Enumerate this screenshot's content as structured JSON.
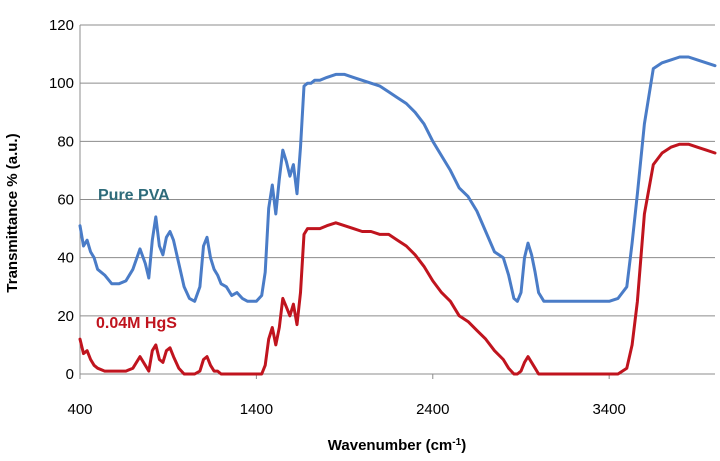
{
  "chart_data": {
    "type": "line",
    "title": "",
    "xlabel": "Wavenumber (cm",
    "xlabel_sup": "-1",
    "xlabel_close": ")",
    "ylabel": "Transmittance % (a.u.)",
    "xlim": [
      400,
      4000
    ],
    "ylim": [
      0,
      120
    ],
    "x_ticks": [
      400,
      1400,
      2400,
      3400
    ],
    "x_tick_labels": [
      "400",
      "1400",
      "2400",
      "3400"
    ],
    "y_ticks": [
      0,
      20,
      40,
      60,
      80,
      100,
      120
    ],
    "y_tick_labels": [
      "0",
      "20",
      "40",
      "60",
      "80",
      "100",
      "120"
    ],
    "grid": "horizontal",
    "legend": "inline labels",
    "series": [
      {
        "name": "Pure PVA",
        "color": "#4a7cc7",
        "label_color": "#2e6b7a",
        "label_position": [
          700,
          62
        ],
        "x": [
          400,
          420,
          440,
          460,
          480,
          500,
          540,
          580,
          620,
          660,
          700,
          740,
          770,
          790,
          810,
          830,
          850,
          870,
          890,
          910,
          930,
          960,
          990,
          1020,
          1050,
          1080,
          1100,
          1120,
          1140,
          1160,
          1180,
          1200,
          1230,
          1260,
          1290,
          1320,
          1350,
          1380,
          1400,
          1430,
          1450,
          1470,
          1490,
          1510,
          1530,
          1550,
          1570,
          1590,
          1610,
          1630,
          1650,
          1670,
          1690,
          1710,
          1730,
          1760,
          1800,
          1850,
          1900,
          1950,
          2000,
          2050,
          2100,
          2150,
          2200,
          2250,
          2300,
          2350,
          2400,
          2450,
          2500,
          2550,
          2600,
          2650,
          2700,
          2750,
          2800,
          2830,
          2860,
          2880,
          2900,
          2920,
          2940,
          2960,
          2980,
          3000,
          3030,
          3060,
          3100,
          3150,
          3200,
          3300,
          3400,
          3450,
          3500,
          3530,
          3560,
          3600,
          3650,
          3700,
          3750,
          3800,
          3850,
          3900,
          3950,
          4000
        ],
        "y": [
          51,
          44,
          46,
          42,
          40,
          36,
          34,
          31,
          31,
          32,
          36,
          43,
          38,
          33,
          46,
          54,
          44,
          41,
          47,
          49,
          46,
          38,
          30,
          26,
          25,
          30,
          44,
          47,
          40,
          36,
          34,
          31,
          30,
          27,
          28,
          26,
          25,
          25,
          25,
          27,
          35,
          57,
          65,
          55,
          67,
          77,
          73,
          68,
          72,
          62,
          78,
          99,
          100,
          100,
          101,
          101,
          102,
          103,
          103,
          102,
          101,
          100,
          99,
          97,
          95,
          93,
          90,
          86,
          80,
          75,
          70,
          64,
          61,
          56,
          49,
          42,
          40,
          34,
          26,
          25,
          28,
          40,
          45,
          41,
          35,
          28,
          25,
          25,
          25,
          25,
          25,
          25,
          25,
          26,
          30,
          45,
          62,
          86,
          105,
          107,
          108,
          109,
          109,
          108,
          107,
          106
        ]
      },
      {
        "name": "0.04M HgS",
        "color": "#c0141e",
        "label_color": "#c0141e",
        "label_position": [
          700,
          321
        ],
        "x": [
          400,
          420,
          440,
          460,
          480,
          500,
          540,
          580,
          620,
          660,
          700,
          740,
          770,
          790,
          810,
          830,
          850,
          870,
          890,
          910,
          930,
          960,
          990,
          1020,
          1050,
          1080,
          1100,
          1120,
          1140,
          1160,
          1180,
          1200,
          1230,
          1260,
          1290,
          1320,
          1350,
          1380,
          1400,
          1430,
          1450,
          1470,
          1490,
          1510,
          1530,
          1550,
          1570,
          1590,
          1610,
          1630,
          1650,
          1670,
          1690,
          1710,
          1730,
          1760,
          1800,
          1850,
          1900,
          1950,
          2000,
          2050,
          2100,
          2150,
          2200,
          2250,
          2300,
          2350,
          2400,
          2450,
          2500,
          2550,
          2600,
          2650,
          2700,
          2750,
          2800,
          2830,
          2860,
          2880,
          2900,
          2920,
          2940,
          2960,
          2980,
          3000,
          3030,
          3060,
          3100,
          3150,
          3200,
          3300,
          3400,
          3450,
          3500,
          3530,
          3560,
          3600,
          3650,
          3700,
          3750,
          3800,
          3850,
          3900,
          3950,
          4000
        ],
        "y": [
          12,
          7,
          8,
          5,
          3,
          2,
          1,
          1,
          1,
          1,
          2,
          6,
          3,
          1,
          8,
          10,
          5,
          4,
          8,
          9,
          6,
          2,
          0,
          0,
          0,
          1,
          5,
          6,
          3,
          1,
          1,
          0,
          0,
          0,
          0,
          0,
          0,
          0,
          0,
          0,
          3,
          12,
          16,
          10,
          16,
          26,
          23,
          20,
          24,
          17,
          28,
          48,
          50,
          50,
          50,
          50,
          51,
          52,
          51,
          50,
          49,
          49,
          48,
          48,
          46,
          44,
          41,
          37,
          32,
          28,
          25,
          20,
          18,
          15,
          12,
          8,
          5,
          2,
          0,
          0,
          1,
          4,
          6,
          4,
          2,
          0,
          0,
          0,
          0,
          0,
          0,
          0,
          0,
          0,
          2,
          10,
          25,
          55,
          72,
          76,
          78,
          79,
          79,
          78,
          77,
          76
        ]
      }
    ]
  }
}
